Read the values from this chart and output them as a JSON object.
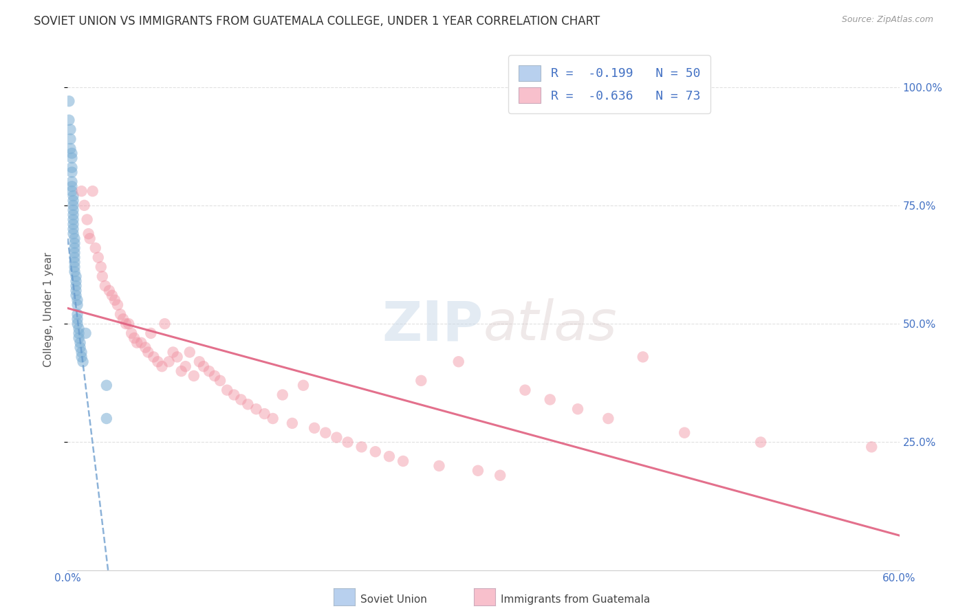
{
  "title": "SOVIET UNION VS IMMIGRANTS FROM GUATEMALA COLLEGE, UNDER 1 YEAR CORRELATION CHART",
  "source": "Source: ZipAtlas.com",
  "ylabel": "College, Under 1 year",
  "right_ytick_labels": [
    "100.0%",
    "75.0%",
    "50.0%",
    "25.0%"
  ],
  "right_ytick_values": [
    1.0,
    0.75,
    0.5,
    0.25
  ],
  "xlim": [
    0.0,
    0.6
  ],
  "ylim": [
    -0.02,
    1.08
  ],
  "legend_label1": "R =  -0.199   N = 50",
  "legend_label2": "R =  -0.636   N = 73",
  "legend_color1": "#b8d0ee",
  "legend_color2": "#f8c0cc",
  "scatter_color1": "#7baed4",
  "scatter_color2": "#f090a0",
  "trendline_color1": "#6699cc",
  "trendline_color2": "#e06080",
  "watermark_zip": "ZIP",
  "watermark_atlas": "atlas",
  "background_color": "#ffffff",
  "grid_color": "#e0e0e0",
  "title_fontsize": 12,
  "axis_label_fontsize": 11,
  "tick_fontsize": 11,
  "blue_dots_x": [
    0.001,
    0.001,
    0.002,
    0.002,
    0.002,
    0.003,
    0.003,
    0.003,
    0.003,
    0.003,
    0.003,
    0.003,
    0.004,
    0.004,
    0.004,
    0.004,
    0.004,
    0.004,
    0.004,
    0.004,
    0.004,
    0.005,
    0.005,
    0.005,
    0.005,
    0.005,
    0.005,
    0.005,
    0.005,
    0.006,
    0.006,
    0.006,
    0.006,
    0.006,
    0.007,
    0.007,
    0.007,
    0.007,
    0.007,
    0.008,
    0.008,
    0.008,
    0.009,
    0.009,
    0.01,
    0.01,
    0.011,
    0.013,
    0.028,
    0.028
  ],
  "blue_dots_y": [
    0.97,
    0.93,
    0.91,
    0.89,
    0.87,
    0.86,
    0.85,
    0.83,
    0.82,
    0.8,
    0.79,
    0.78,
    0.77,
    0.76,
    0.75,
    0.74,
    0.73,
    0.72,
    0.71,
    0.7,
    0.69,
    0.68,
    0.67,
    0.66,
    0.65,
    0.64,
    0.63,
    0.62,
    0.61,
    0.6,
    0.59,
    0.58,
    0.57,
    0.56,
    0.55,
    0.54,
    0.52,
    0.51,
    0.5,
    0.49,
    0.48,
    0.47,
    0.46,
    0.45,
    0.44,
    0.43,
    0.42,
    0.48,
    0.37,
    0.3
  ],
  "pink_dots_x": [
    0.01,
    0.012,
    0.014,
    0.015,
    0.016,
    0.018,
    0.02,
    0.022,
    0.024,
    0.025,
    0.027,
    0.03,
    0.032,
    0.034,
    0.036,
    0.038,
    0.04,
    0.042,
    0.044,
    0.046,
    0.048,
    0.05,
    0.053,
    0.056,
    0.058,
    0.06,
    0.062,
    0.065,
    0.068,
    0.07,
    0.073,
    0.076,
    0.079,
    0.082,
    0.085,
    0.088,
    0.091,
    0.095,
    0.098,
    0.102,
    0.106,
    0.11,
    0.115,
    0.12,
    0.125,
    0.13,
    0.136,
    0.142,
    0.148,
    0.155,
    0.162,
    0.17,
    0.178,
    0.186,
    0.194,
    0.202,
    0.212,
    0.222,
    0.232,
    0.242,
    0.255,
    0.268,
    0.282,
    0.296,
    0.312,
    0.33,
    0.348,
    0.368,
    0.39,
    0.415,
    0.445,
    0.5,
    0.58
  ],
  "pink_dots_y": [
    0.78,
    0.75,
    0.72,
    0.69,
    0.68,
    0.78,
    0.66,
    0.64,
    0.62,
    0.6,
    0.58,
    0.57,
    0.56,
    0.55,
    0.54,
    0.52,
    0.51,
    0.5,
    0.5,
    0.48,
    0.47,
    0.46,
    0.46,
    0.45,
    0.44,
    0.48,
    0.43,
    0.42,
    0.41,
    0.5,
    0.42,
    0.44,
    0.43,
    0.4,
    0.41,
    0.44,
    0.39,
    0.42,
    0.41,
    0.4,
    0.39,
    0.38,
    0.36,
    0.35,
    0.34,
    0.33,
    0.32,
    0.31,
    0.3,
    0.35,
    0.29,
    0.37,
    0.28,
    0.27,
    0.26,
    0.25,
    0.24,
    0.23,
    0.22,
    0.21,
    0.38,
    0.2,
    0.42,
    0.19,
    0.18,
    0.36,
    0.34,
    0.32,
    0.3,
    0.43,
    0.27,
    0.25,
    0.24
  ]
}
